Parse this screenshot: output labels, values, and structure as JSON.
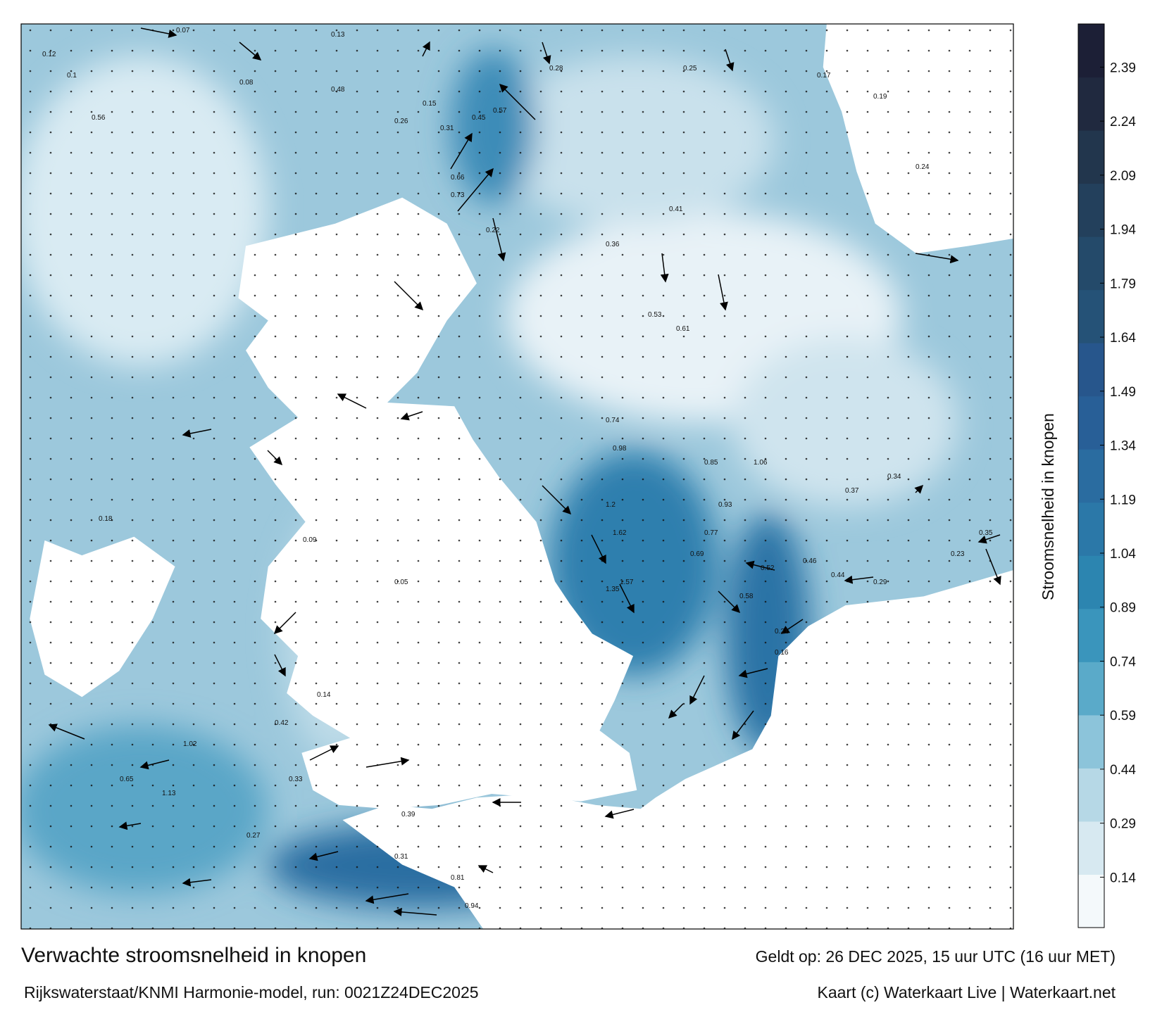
{
  "map": {
    "title": "Verwachte stroomsnelheid in knopen",
    "source": "Rijkswaterstaat/KNMI Harmonie-model, run: 0021Z24DEC2025",
    "valid": "Geldt op: 26 DEC 2025, 15 uur UTC (16 uur MET)",
    "credit": "Kaart (c) Waterkaart Live | Waterkaart.net",
    "colorbar": {
      "label": "Stroomsnelheid in knopen",
      "clim": [
        0,
        2.51
      ],
      "ticks": [
        0.14,
        0.29,
        0.44,
        0.59,
        0.74,
        0.89,
        1.04,
        1.19,
        1.34,
        1.49,
        1.64,
        1.79,
        1.94,
        2.09,
        2.24,
        2.39
      ],
      "colors": [
        "#f4f9fb",
        "#d7e9f1",
        "#b6d8e6",
        "#8cc4da",
        "#5aaac9",
        "#3a95bc",
        "#2c85b0",
        "#2b78a8",
        "#2a6ca0",
        "#285f97",
        "#27568c",
        "#255277",
        "#244a6a",
        "#23405c",
        "#22364d",
        "#20293f",
        "#1c1f36"
      ]
    },
    "current_labels": [
      0.12,
      0.07,
      0.13,
      0.1,
      0.08,
      0.15,
      0.26,
      0.31,
      0.45,
      0.57,
      0.73,
      0.66,
      0.48,
      0.56,
      0.22,
      0.28,
      0.25,
      0.17,
      0.19,
      0.24,
      0.36,
      0.41,
      0.53,
      0.61,
      0.74,
      0.98,
      1.2,
      1.62,
      1.57,
      1.35,
      1.06,
      0.85,
      0.93,
      0.77,
      0.69,
      0.52,
      0.46,
      0.58,
      0.37,
      0.34,
      0.44,
      0.29,
      0.16,
      0.21,
      0.39,
      0.31,
      0.81,
      0.94,
      1.02,
      1.13,
      0.65,
      0.42,
      0.33,
      0.27,
      0.14,
      0.18,
      0.09,
      0.05,
      0.23,
      0.35
    ]
  }
}
